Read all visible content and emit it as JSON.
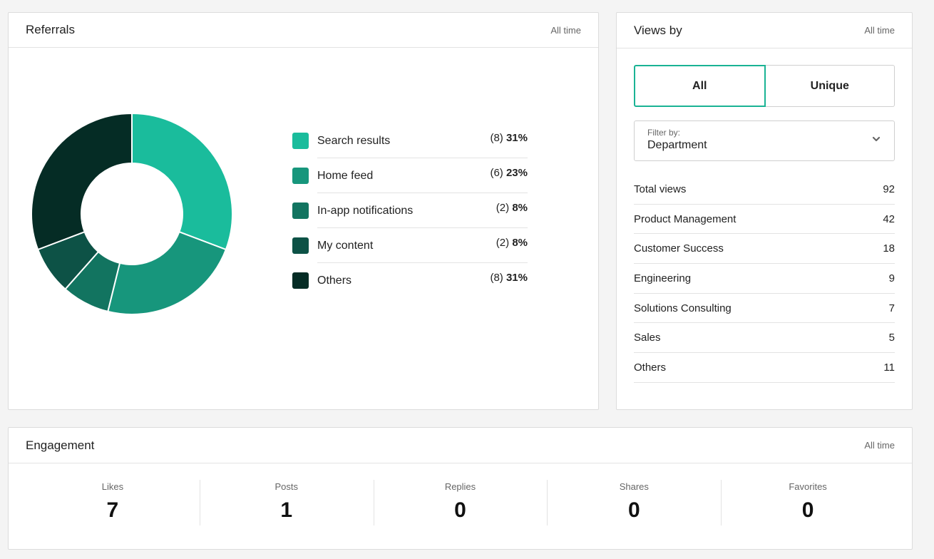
{
  "colors": {
    "accent": "#1ab394",
    "slices": [
      "#1abc9c",
      "#17967c",
      "#127460",
      "#0d5246",
      "#052c25"
    ]
  },
  "referrals": {
    "title": "Referrals",
    "period": "All time",
    "items": [
      {
        "label": "Search results",
        "count": "(8)",
        "pct": "31%",
        "value": 8
      },
      {
        "label": "Home feed",
        "count": "(6)",
        "pct": "23%",
        "value": 6
      },
      {
        "label": "In-app notifications",
        "count": "(2)",
        "pct": "8%",
        "value": 2
      },
      {
        "label": "My content",
        "count": "(2)",
        "pct": "8%",
        "value": 2
      },
      {
        "label": "Others",
        "count": "(8)",
        "pct": "31%",
        "value": 8
      }
    ]
  },
  "views": {
    "title": "Views by",
    "period": "All time",
    "toggle": {
      "all": "All",
      "unique": "Unique"
    },
    "filter": {
      "label": "Filter by:",
      "value": "Department"
    },
    "rows": [
      {
        "name": "Total views",
        "value": "92"
      },
      {
        "name": "Product Management",
        "value": "42"
      },
      {
        "name": "Customer Success",
        "value": "18"
      },
      {
        "name": "Engineering",
        "value": "9"
      },
      {
        "name": "Solutions Consulting",
        "value": "7"
      },
      {
        "name": "Sales",
        "value": "5"
      },
      {
        "name": "Others",
        "value": "11"
      }
    ]
  },
  "engagement": {
    "title": "Engagement",
    "period": "All time",
    "stats": [
      {
        "label": "Likes",
        "value": "7"
      },
      {
        "label": "Posts",
        "value": "1"
      },
      {
        "label": "Replies",
        "value": "0"
      },
      {
        "label": "Shares",
        "value": "0"
      },
      {
        "label": "Favorites",
        "value": "0"
      }
    ]
  }
}
